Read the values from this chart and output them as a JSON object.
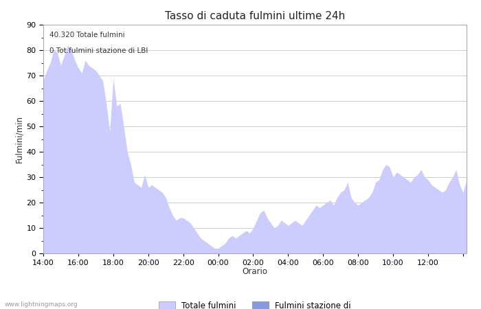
{
  "title": "Tasso di caduta fulmini ultime 24h",
  "xlabel": "Orario",
  "ylabel": "Fulmini/min",
  "annotation_line1": "40.320 Totale fulmini",
  "annotation_line2": "0 Tot.fulmini stazione di LBI",
  "watermark": "www.lightningmaps.org",
  "legend_label1": "Totale fulmini",
  "legend_label2": "Fulmini stazione di",
  "fill_color1": "#ccccff",
  "fill_color2": "#8899dd",
  "line_color": "#bbbbee",
  "background_color": "#ffffff",
  "grid_color": "#cccccc",
  "ylim": [
    0,
    90
  ],
  "yticks": [
    0,
    10,
    20,
    30,
    40,
    50,
    60,
    70,
    80,
    90
  ],
  "x_labels": [
    "14:00",
    "16:00",
    "18:00",
    "20:00",
    "22:00",
    "00:00",
    "02:00",
    "04:00",
    "06:00",
    "08:00",
    "10:00",
    "12:00",
    ""
  ],
  "y_values": [
    68,
    72,
    75,
    80,
    79,
    74,
    78,
    82,
    80,
    76,
    73,
    71,
    76,
    74,
    73,
    72,
    70,
    68,
    59,
    48,
    69,
    58,
    59,
    50,
    40,
    35,
    28,
    27,
    26,
    31,
    26,
    27,
    26,
    25,
    24,
    22,
    18,
    15,
    13,
    14,
    14,
    13,
    12,
    10,
    8,
    6,
    5,
    4,
    3,
    2,
    2,
    3,
    4,
    6,
    7,
    6,
    7,
    8,
    9,
    8,
    10,
    13,
    16,
    17,
    14,
    12,
    10,
    11,
    13,
    12,
    11,
    12,
    13,
    12,
    11,
    13,
    15,
    17,
    19,
    18,
    19,
    20,
    21,
    19,
    22,
    24,
    25,
    28,
    22,
    20,
    19,
    20,
    21,
    22,
    24,
    28,
    29,
    33,
    35,
    34,
    30,
    32,
    31,
    30,
    29,
    28,
    30,
    31,
    33,
    30,
    29,
    27,
    26,
    25,
    24,
    25,
    28,
    30,
    33,
    27,
    24,
    29
  ]
}
